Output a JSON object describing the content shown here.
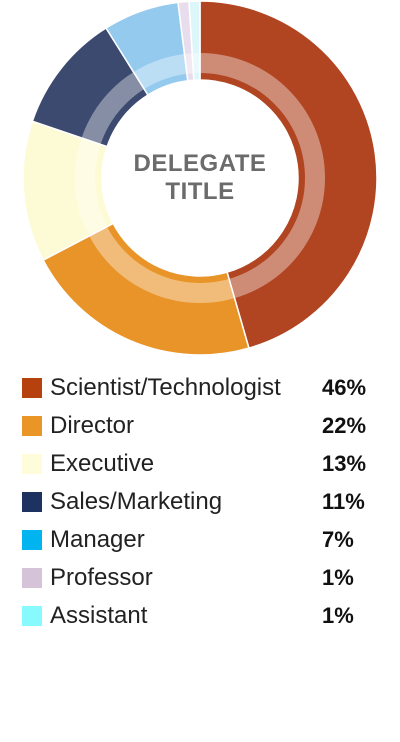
{
  "chart_data": {
    "type": "pie",
    "title": "DELEGATE TITLE",
    "title_lines": [
      "DELEGATE",
      "TITLE"
    ],
    "categories": [
      "Scientist/Technologist",
      "Director",
      "Executive",
      "Sales/Marketing",
      "Manager",
      "Professor",
      "Assistant"
    ],
    "values": [
      46,
      22,
      13,
      11,
      7,
      1,
      1
    ],
    "value_labels": [
      "46%",
      "22%",
      "13%",
      "11%",
      "7%",
      "1%",
      "1%"
    ],
    "legend_colors": [
      "#B5410F",
      "#EA9626",
      "#FFFCDC",
      "#1D325E",
      "#00B4F0",
      "#D5C3DA",
      "#86FAFF"
    ],
    "slice_colors": [
      "#B14522",
      "#E99428",
      "#FDFBD6",
      "#3C4A70",
      "#94CAEE",
      "#E8DDEC",
      "#DDF6FA"
    ],
    "legend_position": "bottom"
  }
}
